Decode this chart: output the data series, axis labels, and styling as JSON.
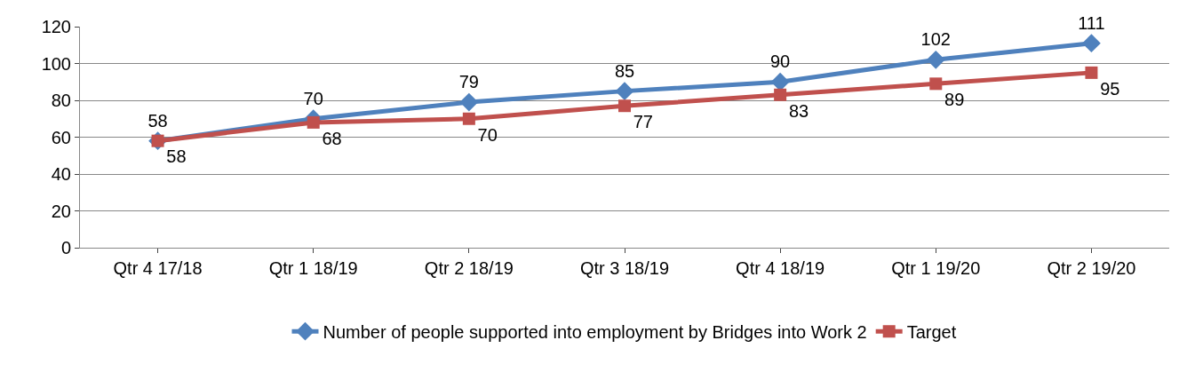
{
  "chart_data": {
    "type": "line",
    "categories": [
      "Qtr 4 17/18",
      "Qtr 1 18/19",
      "Qtr 2 18/19",
      "Qtr 3 18/19",
      "Qtr 4 18/19",
      "Qtr 1 19/20",
      "Qtr 2 19/20"
    ],
    "series": [
      {
        "name": "Number of people supported into employment by Bridges into Work 2",
        "color": "#4f81bd",
        "marker": "diamond",
        "values": [
          58,
          70,
          79,
          85,
          90,
          102,
          111
        ]
      },
      {
        "name": "Target",
        "color": "#c0504d",
        "marker": "square",
        "values": [
          58,
          68,
          70,
          77,
          83,
          89,
          95
        ]
      }
    ],
    "ylim": [
      0,
      120
    ],
    "yticks": [
      0,
      20,
      40,
      60,
      80,
      100,
      120
    ],
    "grid": "y",
    "legend": "bottom",
    "data_labels": true,
    "line_style": "solid"
  }
}
